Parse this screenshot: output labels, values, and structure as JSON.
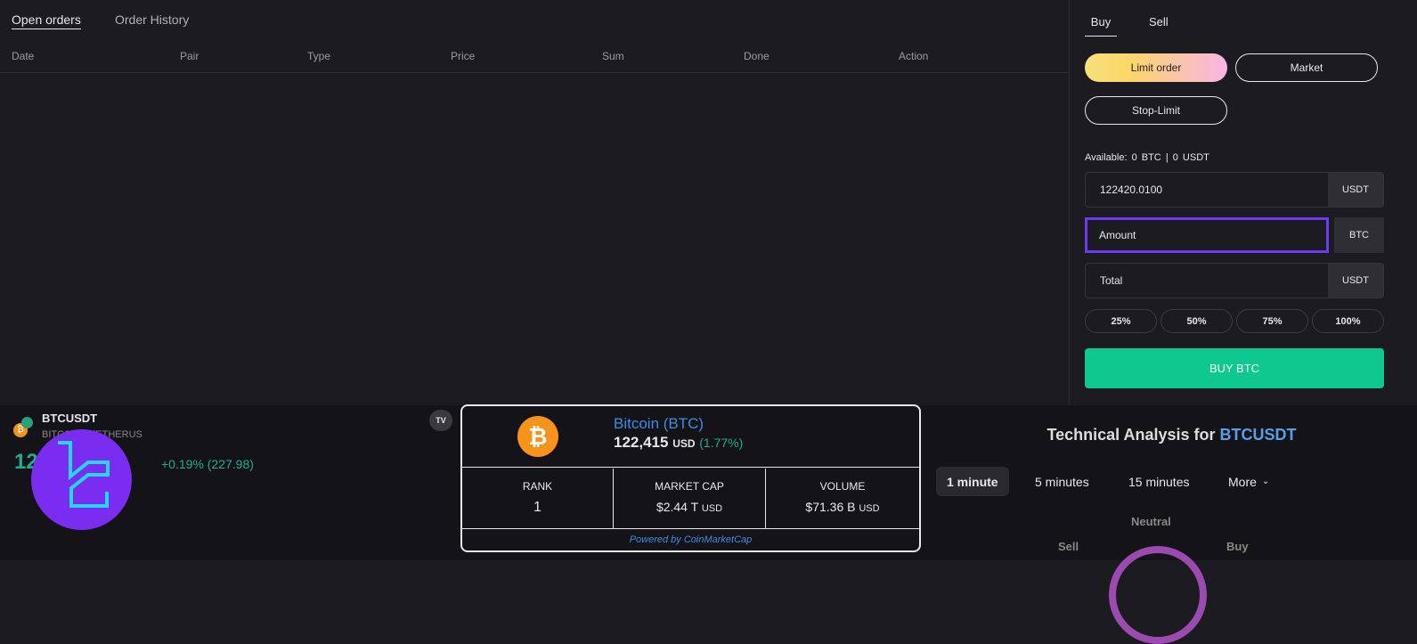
{
  "orders": {
    "tabs": [
      "Open orders",
      "Order History"
    ],
    "columns": [
      "Date",
      "Pair",
      "Type",
      "Price",
      "Sum",
      "Done",
      "Action"
    ]
  },
  "trade": {
    "sides": [
      "Buy",
      "Sell"
    ],
    "order_types": [
      "Limit order",
      "Market",
      "Stop-Limit"
    ],
    "available_label": "Available:",
    "available_btc": "0 BTC",
    "separator": "|",
    "available_usdt": "0 USDT",
    "price_value": "122420.0100",
    "price_unit": "USDT",
    "amount_placeholder": "Amount",
    "amount_unit": "BTC",
    "total_placeholder": "Total",
    "total_unit": "USDT",
    "percents": [
      "25%",
      "50%",
      "75%",
      "100%"
    ],
    "buy_button": "BUY BTC",
    "accent": "#0fc88d"
  },
  "ticker": {
    "symbol": "BTCUSDT",
    "exchange": "BITCOIN / TETHERUS",
    "price": "122,415.98",
    "change": "+0.19% (227.98)",
    "tv_logo": "TV"
  },
  "cmc": {
    "name": "Bitcoin (BTC)",
    "price": "122,415",
    "price_unit": "USD",
    "change": "(1.77%)",
    "rank_label": "RANK",
    "rank": "1",
    "mcap_label": "MARKET CAP",
    "mcap": "$2.44 T",
    "mcap_unit": "USD",
    "vol_label": "VOLUME",
    "vol": "$71.36 B",
    "vol_unit": "USD",
    "powered": "Powered by CoinMarketCap"
  },
  "ta": {
    "title": "Technical Analysis for",
    "symbol": "BTCUSDT",
    "timeframes": [
      "1 minute",
      "5 minutes",
      "15 minutes",
      "More"
    ],
    "gauge_labels": {
      "neutral": "Neutral",
      "sell": "Sell",
      "buy": "Buy"
    }
  }
}
